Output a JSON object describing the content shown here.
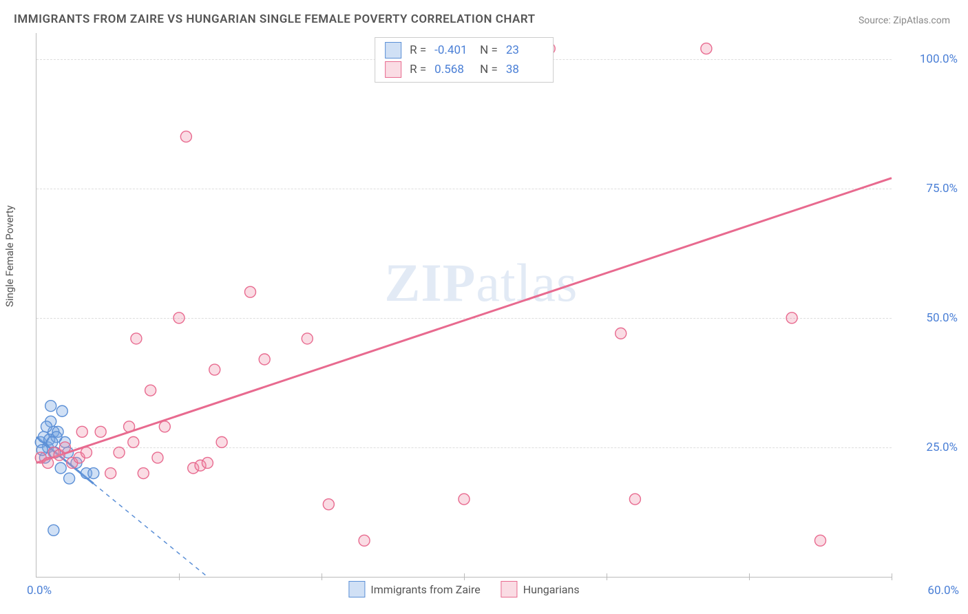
{
  "title": "IMMIGRANTS FROM ZAIRE VS HUNGARIAN SINGLE FEMALE POVERTY CORRELATION CHART",
  "source": "Source: ZipAtlas.com",
  "ylabel": "Single Female Poverty",
  "watermark_a": "ZIP",
  "watermark_b": "atlas",
  "chart": {
    "type": "scatter",
    "xlim": [
      0,
      60
    ],
    "ylim": [
      0,
      105
    ],
    "xticks_pct": [
      0,
      10,
      20,
      30,
      40,
      50,
      60
    ],
    "yticks": [
      {
        "v": 25,
        "label": "25.0%"
      },
      {
        "v": 50,
        "label": "50.0%"
      },
      {
        "v": 75,
        "label": "75.0%"
      },
      {
        "v": 100,
        "label": "100.0%"
      }
    ],
    "xtick_0": "0.0%",
    "xtick_end": "60.0%",
    "background_color": "#ffffff",
    "grid_color": "#dddddd",
    "marker_radius": 8,
    "marker_stroke_width": 1.4,
    "line_width": 3,
    "series": [
      {
        "name": "Immigrants from Zaire",
        "color_stroke": "#5b8fd6",
        "color_fill": "rgba(120,165,225,0.35)",
        "r": "-0.401",
        "n": "23",
        "trend": {
          "x1": 0,
          "y1": 27,
          "x2": 12,
          "y2": 0,
          "dashed_after_x": 4
        },
        "points": [
          [
            0.3,
            26
          ],
          [
            0.5,
            27
          ],
          [
            0.8,
            25
          ],
          [
            1.0,
            33
          ],
          [
            1.2,
            28
          ],
          [
            1.0,
            30
          ],
          [
            0.9,
            26.5
          ],
          [
            1.3,
            24
          ],
          [
            1.5,
            28
          ],
          [
            1.8,
            32
          ],
          [
            0.6,
            23
          ],
          [
            2.0,
            26
          ],
          [
            2.3,
            19
          ],
          [
            2.8,
            22
          ],
          [
            3.5,
            20
          ],
          [
            4.0,
            20
          ],
          [
            1.7,
            21
          ],
          [
            2.2,
            24
          ],
          [
            1.2,
            9
          ],
          [
            0.7,
            29
          ],
          [
            1.4,
            27
          ],
          [
            0.4,
            24.5
          ],
          [
            1.1,
            26
          ]
        ]
      },
      {
        "name": "Hungarians",
        "color_stroke": "#e86a8f",
        "color_fill": "rgba(240,140,165,0.30)",
        "r": "0.568",
        "n": "38",
        "trend": {
          "x1": 0,
          "y1": 22,
          "x2": 60,
          "y2": 77,
          "dashed_after_x": 999
        },
        "points": [
          [
            0.3,
            23
          ],
          [
            0.8,
            22
          ],
          [
            1.2,
            24
          ],
          [
            1.6,
            23.5
          ],
          [
            2.0,
            25
          ],
          [
            2.5,
            22
          ],
          [
            3.0,
            23
          ],
          [
            3.5,
            24
          ],
          [
            4.5,
            28
          ],
          [
            5.2,
            20
          ],
          [
            6.5,
            29
          ],
          [
            7.0,
            46
          ],
          [
            7.5,
            20
          ],
          [
            8.0,
            36
          ],
          [
            8.5,
            23
          ],
          [
            9.0,
            29
          ],
          [
            10,
            50
          ],
          [
            10.5,
            85
          ],
          [
            11,
            21
          ],
          [
            11.5,
            21.5
          ],
          [
            12,
            22
          ],
          [
            12.5,
            40
          ],
          [
            13,
            26
          ],
          [
            15,
            55
          ],
          [
            16,
            42
          ],
          [
            19,
            46
          ],
          [
            20.5,
            14
          ],
          [
            23,
            7
          ],
          [
            30,
            15
          ],
          [
            36,
            102
          ],
          [
            41,
            47
          ],
          [
            42,
            15
          ],
          [
            47,
            102
          ],
          [
            53,
            50
          ],
          [
            55,
            7
          ],
          [
            3.2,
            28
          ],
          [
            5.8,
            24
          ],
          [
            6.8,
            26
          ]
        ]
      }
    ]
  },
  "legend_bottom": [
    {
      "label": "Immigrants from Zaire",
      "stroke": "#5b8fd6",
      "fill": "rgba(120,165,225,0.35)"
    },
    {
      "label": "Hungarians",
      "stroke": "#e86a8f",
      "fill": "rgba(240,140,165,0.30)"
    }
  ]
}
